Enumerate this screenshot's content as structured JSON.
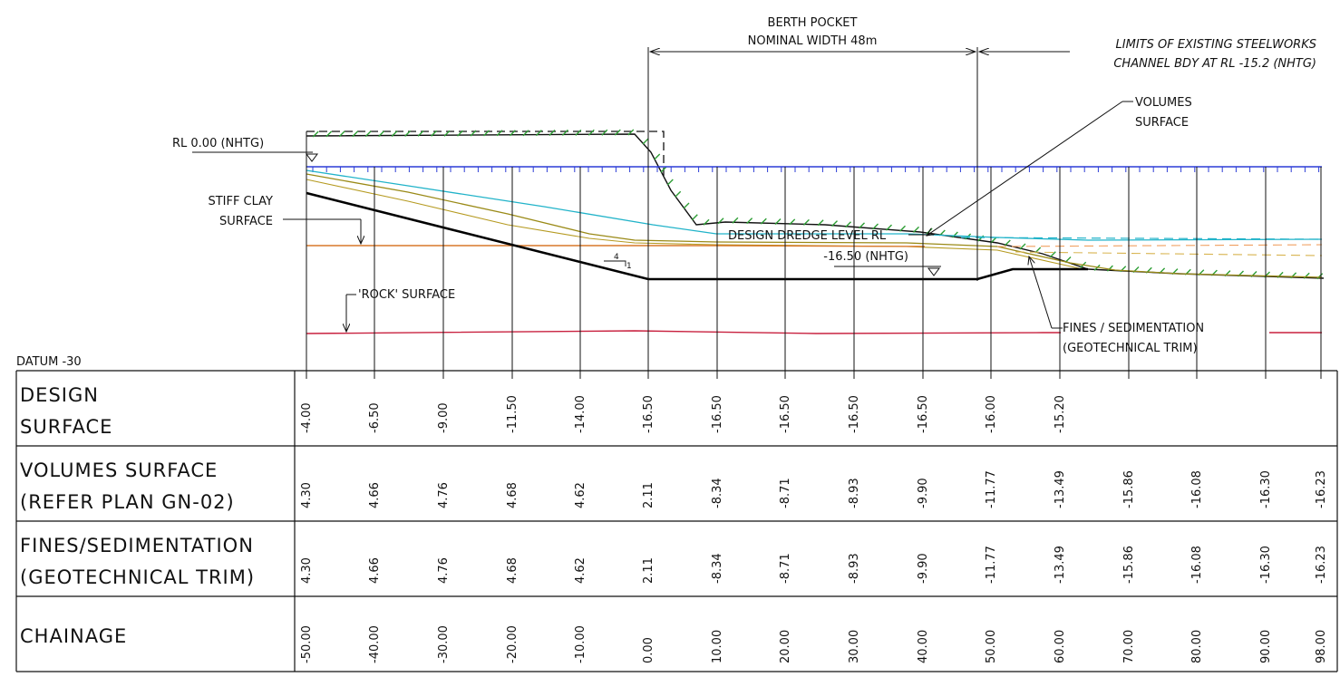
{
  "annotations": {
    "berth_pocket_line1": "BERTH POCKET",
    "berth_pocket_line2": "NOMINAL WIDTH 48m",
    "limits_line1": "LIMITS OF EXISTING STEELWORKS",
    "limits_line2": "CHANNEL BDY AT RL -15.2 (NHTG)",
    "volumes_line1": "VOLUMES",
    "volumes_line2": "SURFACE",
    "rl_zero": "RL 0.00 (NHTG)",
    "stiff_clay_line1": "STIFF CLAY",
    "stiff_clay_line2": "SURFACE",
    "rock_surface": "'ROCK' SURFACE",
    "design_dredge_line1": "DESIGN DREDGE LEVEL RL",
    "design_dredge_line2": "-16.50 (NHTG)",
    "slope_run": "4",
    "slope_rise": "1",
    "fines_line1": "FINES / SEDIMENTATION",
    "fines_line2": "(GEOTECHNICAL TRIM)",
    "datum": "DATUM -30"
  },
  "colors": {
    "water_line": "#2b3cd6",
    "cyan_surface": "#21b3c9",
    "olive_surface": "#9a8a17",
    "orange_surface": "#d9782a",
    "rock_surface": "#c8213f",
    "hatch_green": "#2e9e35",
    "design_line": "#000000"
  },
  "table": {
    "rows": [
      {
        "head1": "DESIGN",
        "head2": "SURFACE",
        "values": [
          "-4.00",
          "-6.50",
          "-9.00",
          "-11.50",
          "-14.00",
          "-16.50",
          "-16.50",
          "-16.50",
          "-16.50",
          "-16.50",
          "-16.00",
          "-15.20",
          "",
          "",
          "",
          ""
        ]
      },
      {
        "head1": "VOLUMES SURFACE",
        "head2": "(REFER PLAN GN-02)",
        "values": [
          "4.30",
          "4.66",
          "4.76",
          "4.68",
          "4.62",
          "2.11",
          "-8.34",
          "-8.71",
          "-8.93",
          "-9.90",
          "-11.77",
          "-13.49",
          "-15.86",
          "-16.08",
          "-16.30",
          "-16.23"
        ]
      },
      {
        "head1": "FINES/SEDIMENTATION",
        "head2": "(GEOTECHNICAL TRIM)",
        "values": [
          "4.30",
          "4.66",
          "4.76",
          "4.68",
          "4.62",
          "2.11",
          "-8.34",
          "-8.71",
          "-8.93",
          "-9.90",
          "-11.77",
          "-13.49",
          "-15.86",
          "-16.08",
          "-16.30",
          "-16.23"
        ]
      },
      {
        "head1": "CHAINAGE",
        "head2": "",
        "values": [
          "-50.00",
          "-40.00",
          "-30.00",
          "-20.00",
          "-10.00",
          "0.00",
          "10.00",
          "20.00",
          "30.00",
          "40.00",
          "50.00",
          "60.00",
          "70.00",
          "80.00",
          "90.00",
          "98.00"
        ]
      }
    ]
  }
}
